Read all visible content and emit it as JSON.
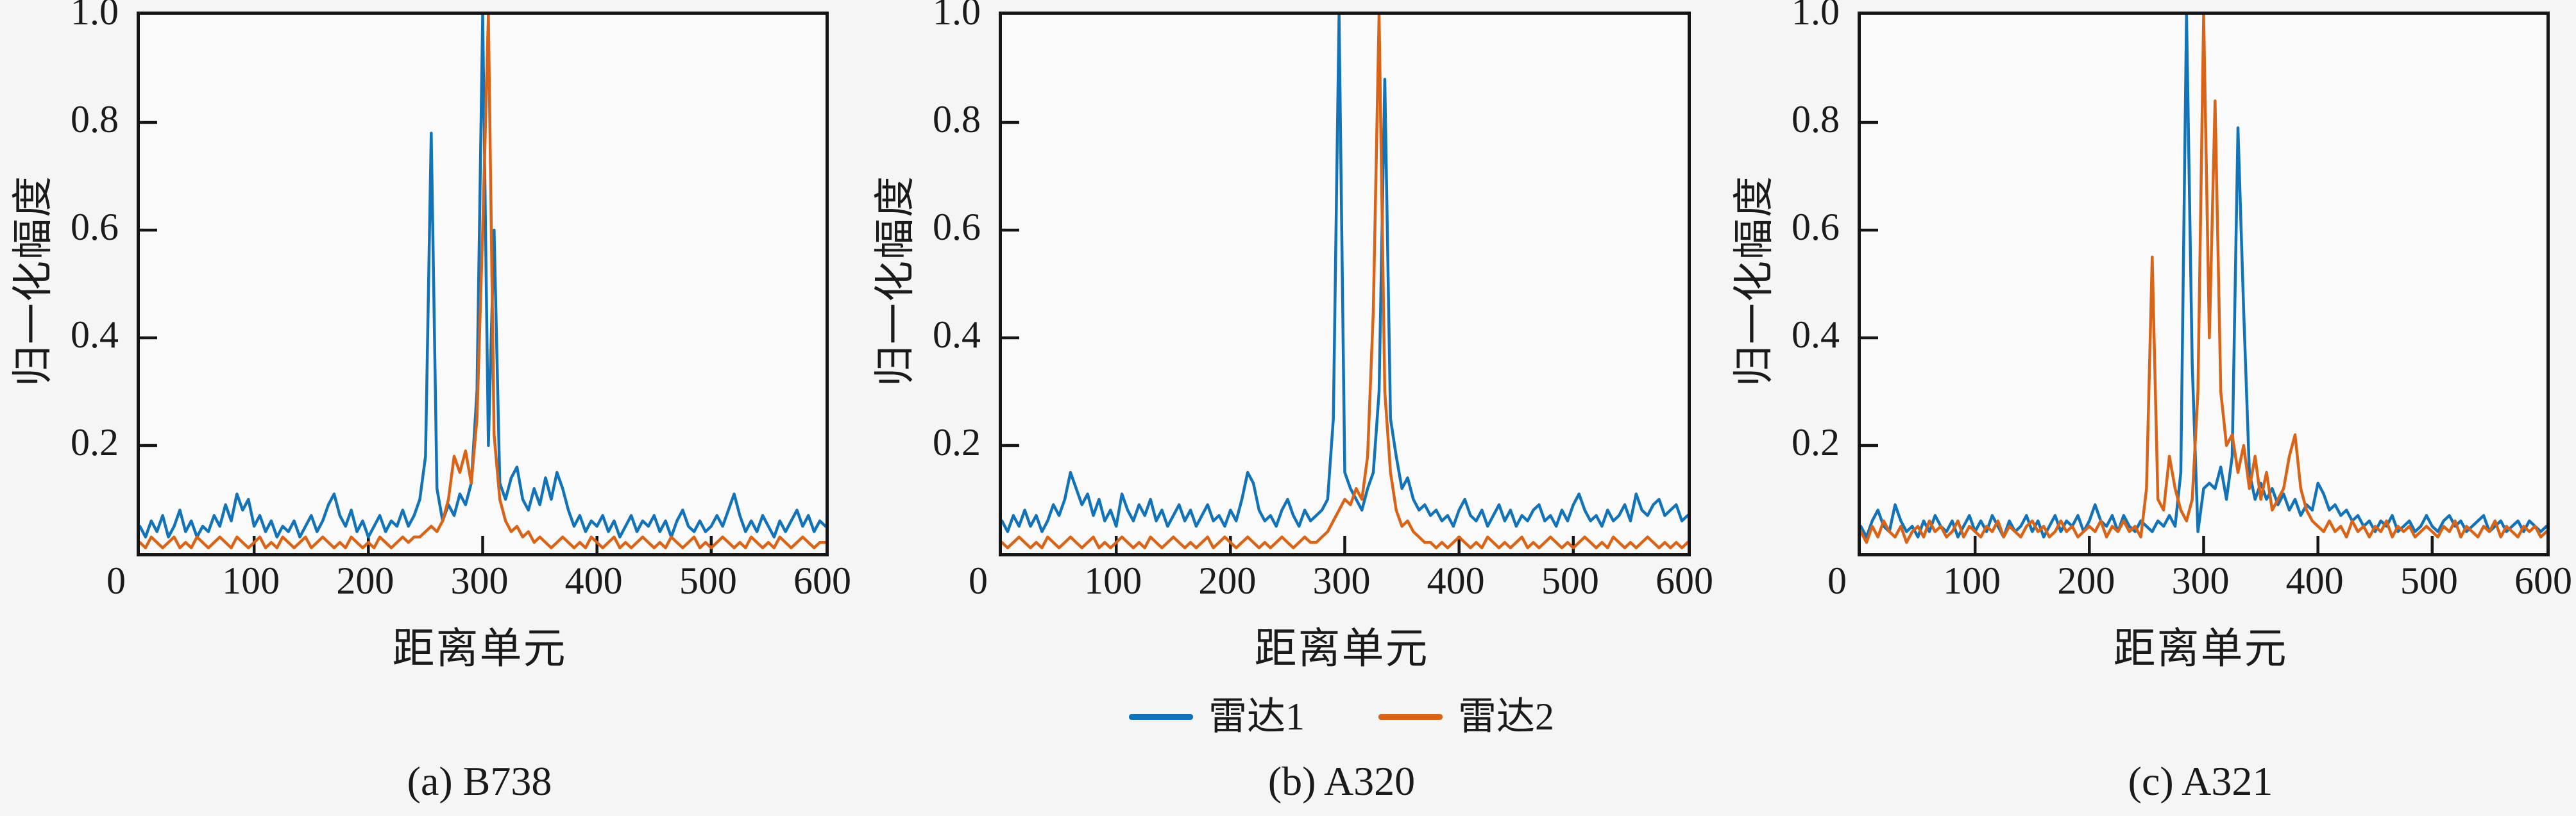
{
  "figure": {
    "background": "#f5f5f6",
    "axis_color": "#151515",
    "text_color": "#1a1a1a",
    "legend": {
      "items": [
        {
          "label": "雷达1",
          "color": "#1373b9"
        },
        {
          "label": "雷达2",
          "color": "#d96417"
        }
      ]
    }
  },
  "chart_data": [
    {
      "type": "line",
      "title": "(a) B738",
      "xlabel": "距离单元",
      "ylabel": "归一化幅度",
      "xlim": [
        0,
        600
      ],
      "ylim": [
        0,
        1.0
      ],
      "grid": false,
      "legend_position": "below-figure",
      "x_ticks": [
        0,
        100,
        200,
        300,
        400,
        500,
        600
      ],
      "y_ticks": [
        0.2,
        0.4,
        0.6,
        0.8,
        1.0
      ],
      "y_tick_labels": [
        "0.2",
        "0.4",
        "0.6",
        "0.8",
        "1.0"
      ],
      "x_step": 5,
      "series": [
        {
          "name": "雷达1",
          "color": "#1373b9",
          "values": [
            0.05,
            0.03,
            0.06,
            0.04,
            0.07,
            0.03,
            0.05,
            0.08,
            0.04,
            0.06,
            0.03,
            0.05,
            0.04,
            0.07,
            0.05,
            0.09,
            0.06,
            0.11,
            0.08,
            0.1,
            0.05,
            0.07,
            0.04,
            0.06,
            0.03,
            0.05,
            0.04,
            0.06,
            0.03,
            0.05,
            0.07,
            0.04,
            0.06,
            0.09,
            0.11,
            0.07,
            0.05,
            0.08,
            0.04,
            0.06,
            0.03,
            0.05,
            0.07,
            0.04,
            0.06,
            0.05,
            0.08,
            0.05,
            0.07,
            0.1,
            0.18,
            0.78,
            0.12,
            0.06,
            0.09,
            0.07,
            0.11,
            0.09,
            0.13,
            0.3,
            1.0,
            0.2,
            0.6,
            0.13,
            0.1,
            0.14,
            0.16,
            0.1,
            0.08,
            0.12,
            0.09,
            0.14,
            0.1,
            0.15,
            0.12,
            0.08,
            0.05,
            0.07,
            0.04,
            0.06,
            0.05,
            0.07,
            0.04,
            0.06,
            0.03,
            0.05,
            0.07,
            0.04,
            0.06,
            0.05,
            0.07,
            0.04,
            0.06,
            0.03,
            0.06,
            0.08,
            0.05,
            0.04,
            0.06,
            0.04,
            0.05,
            0.07,
            0.05,
            0.08,
            0.11,
            0.07,
            0.04,
            0.06,
            0.04,
            0.07,
            0.05,
            0.03,
            0.06,
            0.04,
            0.06,
            0.08,
            0.05,
            0.07,
            0.04,
            0.06,
            0.05
          ]
        },
        {
          "name": "雷达2",
          "color": "#d96417",
          "values": [
            0.02,
            0.01,
            0.03,
            0.02,
            0.01,
            0.02,
            0.03,
            0.01,
            0.02,
            0.01,
            0.03,
            0.02,
            0.01,
            0.02,
            0.03,
            0.02,
            0.01,
            0.03,
            0.02,
            0.01,
            0.02,
            0.03,
            0.01,
            0.02,
            0.01,
            0.03,
            0.02,
            0.01,
            0.02,
            0.03,
            0.01,
            0.02,
            0.03,
            0.02,
            0.01,
            0.02,
            0.01,
            0.03,
            0.02,
            0.01,
            0.02,
            0.01,
            0.03,
            0.02,
            0.01,
            0.02,
            0.03,
            0.02,
            0.03,
            0.03,
            0.04,
            0.05,
            0.04,
            0.06,
            0.1,
            0.18,
            0.15,
            0.19,
            0.13,
            0.25,
            0.6,
            1.0,
            0.22,
            0.1,
            0.06,
            0.04,
            0.05,
            0.03,
            0.04,
            0.02,
            0.03,
            0.02,
            0.01,
            0.02,
            0.03,
            0.02,
            0.01,
            0.02,
            0.01,
            0.03,
            0.02,
            0.01,
            0.02,
            0.03,
            0.01,
            0.02,
            0.01,
            0.02,
            0.03,
            0.02,
            0.01,
            0.02,
            0.01,
            0.03,
            0.02,
            0.01,
            0.02,
            0.03,
            0.01,
            0.02,
            0.01,
            0.02,
            0.03,
            0.02,
            0.01,
            0.02,
            0.01,
            0.03,
            0.02,
            0.01,
            0.02,
            0.01,
            0.03,
            0.02,
            0.01,
            0.02,
            0.03,
            0.02,
            0.01,
            0.02,
            0.02
          ]
        }
      ]
    },
    {
      "type": "line",
      "title": "(b) A320",
      "xlabel": "距离单元",
      "ylabel": "归一化幅度",
      "xlim": [
        0,
        600
      ],
      "ylim": [
        0,
        1.0
      ],
      "grid": false,
      "legend_position": "below-figure",
      "x_ticks": [
        0,
        100,
        200,
        300,
        400,
        500,
        600
      ],
      "y_ticks": [
        0.2,
        0.4,
        0.6,
        0.8,
        1.0
      ],
      "y_tick_labels": [
        "0.2",
        "0.4",
        "0.6",
        "0.8",
        "1.0"
      ],
      "x_step": 5,
      "series": [
        {
          "name": "雷达1",
          "color": "#1373b9",
          "values": [
            0.06,
            0.04,
            0.07,
            0.05,
            0.08,
            0.05,
            0.07,
            0.04,
            0.06,
            0.09,
            0.07,
            0.1,
            0.15,
            0.12,
            0.09,
            0.11,
            0.07,
            0.1,
            0.06,
            0.08,
            0.05,
            0.11,
            0.08,
            0.06,
            0.09,
            0.07,
            0.1,
            0.06,
            0.08,
            0.05,
            0.07,
            0.09,
            0.06,
            0.08,
            0.05,
            0.07,
            0.09,
            0.06,
            0.07,
            0.05,
            0.08,
            0.06,
            0.1,
            0.15,
            0.13,
            0.08,
            0.06,
            0.07,
            0.05,
            0.08,
            0.1,
            0.07,
            0.05,
            0.08,
            0.06,
            0.07,
            0.08,
            0.1,
            0.25,
            1.0,
            0.15,
            0.12,
            0.1,
            0.08,
            0.12,
            0.15,
            0.3,
            0.88,
            0.25,
            0.18,
            0.12,
            0.14,
            0.1,
            0.08,
            0.09,
            0.07,
            0.08,
            0.06,
            0.07,
            0.05,
            0.08,
            0.1,
            0.07,
            0.06,
            0.08,
            0.05,
            0.07,
            0.09,
            0.06,
            0.08,
            0.05,
            0.07,
            0.06,
            0.08,
            0.09,
            0.06,
            0.07,
            0.05,
            0.08,
            0.06,
            0.09,
            0.11,
            0.08,
            0.06,
            0.07,
            0.05,
            0.08,
            0.06,
            0.07,
            0.09,
            0.06,
            0.11,
            0.08,
            0.07,
            0.09,
            0.1,
            0.07,
            0.08,
            0.09,
            0.06,
            0.07
          ]
        },
        {
          "name": "雷达2",
          "color": "#d96417",
          "values": [
            0.02,
            0.01,
            0.02,
            0.03,
            0.02,
            0.01,
            0.02,
            0.01,
            0.03,
            0.02,
            0.01,
            0.02,
            0.03,
            0.02,
            0.01,
            0.02,
            0.03,
            0.01,
            0.02,
            0.01,
            0.02,
            0.03,
            0.02,
            0.01,
            0.02,
            0.01,
            0.03,
            0.02,
            0.01,
            0.02,
            0.03,
            0.02,
            0.01,
            0.02,
            0.01,
            0.02,
            0.03,
            0.01,
            0.02,
            0.03,
            0.02,
            0.01,
            0.02,
            0.03,
            0.02,
            0.01,
            0.02,
            0.01,
            0.02,
            0.03,
            0.02,
            0.01,
            0.02,
            0.03,
            0.02,
            0.02,
            0.03,
            0.04,
            0.06,
            0.08,
            0.1,
            0.09,
            0.12,
            0.1,
            0.18,
            0.45,
            1.0,
            0.3,
            0.15,
            0.08,
            0.05,
            0.06,
            0.04,
            0.03,
            0.02,
            0.02,
            0.01,
            0.02,
            0.01,
            0.02,
            0.03,
            0.02,
            0.01,
            0.02,
            0.01,
            0.03,
            0.02,
            0.01,
            0.02,
            0.01,
            0.02,
            0.03,
            0.01,
            0.02,
            0.01,
            0.02,
            0.03,
            0.02,
            0.01,
            0.02,
            0.01,
            0.02,
            0.03,
            0.02,
            0.01,
            0.02,
            0.01,
            0.03,
            0.02,
            0.01,
            0.02,
            0.01,
            0.02,
            0.03,
            0.02,
            0.01,
            0.02,
            0.01,
            0.02,
            0.01,
            0.02
          ]
        }
      ]
    },
    {
      "type": "line",
      "title": "(c) A321",
      "xlabel": "距离单元",
      "ylabel": "归一化幅度",
      "xlim": [
        0,
        600
      ],
      "ylim": [
        0,
        1.0
      ],
      "grid": false,
      "legend_position": "below-figure",
      "x_ticks": [
        0,
        100,
        200,
        300,
        400,
        500,
        600
      ],
      "y_ticks": [
        0.2,
        0.4,
        0.6,
        0.8,
        1.0
      ],
      "y_tick_labels": [
        "0.2",
        "0.4",
        "0.6",
        "0.8",
        "1.0"
      ],
      "x_step": 5,
      "series": [
        {
          "name": "雷达1",
          "color": "#1373b9",
          "values": [
            0.05,
            0.03,
            0.06,
            0.08,
            0.05,
            0.04,
            0.09,
            0.06,
            0.04,
            0.05,
            0.03,
            0.06,
            0.04,
            0.07,
            0.05,
            0.04,
            0.06,
            0.03,
            0.05,
            0.07,
            0.04,
            0.06,
            0.04,
            0.07,
            0.05,
            0.03,
            0.06,
            0.04,
            0.05,
            0.07,
            0.04,
            0.06,
            0.03,
            0.05,
            0.07,
            0.04,
            0.06,
            0.05,
            0.07,
            0.04,
            0.06,
            0.09,
            0.06,
            0.05,
            0.07,
            0.04,
            0.07,
            0.05,
            0.04,
            0.06,
            0.05,
            0.04,
            0.06,
            0.05,
            0.07,
            0.05,
            0.15,
            1.0,
            0.35,
            0.04,
            0.12,
            0.13,
            0.12,
            0.16,
            0.1,
            0.18,
            0.79,
            0.45,
            0.15,
            0.1,
            0.13,
            0.1,
            0.12,
            0.09,
            0.11,
            0.08,
            0.1,
            0.07,
            0.09,
            0.08,
            0.13,
            0.11,
            0.08,
            0.09,
            0.07,
            0.08,
            0.06,
            0.07,
            0.05,
            0.06,
            0.04,
            0.06,
            0.05,
            0.07,
            0.04,
            0.05,
            0.06,
            0.04,
            0.05,
            0.07,
            0.05,
            0.04,
            0.06,
            0.07,
            0.05,
            0.06,
            0.04,
            0.05,
            0.06,
            0.07,
            0.04,
            0.05,
            0.06,
            0.04,
            0.05,
            0.06,
            0.04,
            0.06,
            0.05,
            0.04,
            0.05
          ]
        },
        {
          "name": "雷达2",
          "color": "#d96417",
          "values": [
            0.04,
            0.02,
            0.05,
            0.03,
            0.06,
            0.04,
            0.03,
            0.05,
            0.02,
            0.04,
            0.05,
            0.03,
            0.06,
            0.04,
            0.05,
            0.03,
            0.04,
            0.06,
            0.03,
            0.05,
            0.04,
            0.03,
            0.05,
            0.04,
            0.06,
            0.03,
            0.05,
            0.04,
            0.03,
            0.05,
            0.06,
            0.04,
            0.05,
            0.03,
            0.04,
            0.06,
            0.04,
            0.05,
            0.03,
            0.04,
            0.05,
            0.04,
            0.06,
            0.03,
            0.05,
            0.04,
            0.06,
            0.04,
            0.05,
            0.03,
            0.12,
            0.55,
            0.1,
            0.08,
            0.18,
            0.12,
            0.08,
            0.06,
            0.1,
            0.3,
            1.0,
            0.4,
            0.84,
            0.3,
            0.2,
            0.22,
            0.15,
            0.2,
            0.12,
            0.18,
            0.1,
            0.15,
            0.08,
            0.1,
            0.12,
            0.18,
            0.22,
            0.12,
            0.08,
            0.06,
            0.05,
            0.04,
            0.06,
            0.04,
            0.05,
            0.03,
            0.06,
            0.04,
            0.05,
            0.03,
            0.05,
            0.04,
            0.06,
            0.03,
            0.05,
            0.04,
            0.05,
            0.03,
            0.04,
            0.05,
            0.04,
            0.03,
            0.05,
            0.04,
            0.06,
            0.03,
            0.05,
            0.04,
            0.03,
            0.05,
            0.04,
            0.06,
            0.03,
            0.05,
            0.04,
            0.03,
            0.05,
            0.04,
            0.05,
            0.03,
            0.04
          ]
        }
      ]
    }
  ]
}
